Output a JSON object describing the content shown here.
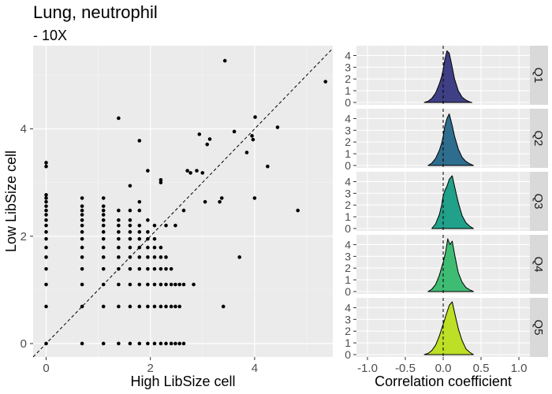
{
  "title": "Lung, neutrophil",
  "subtitle": "- 10X",
  "chart_data": [
    {
      "type": "scatter",
      "xlabel": "High LibSize cell",
      "ylabel": "Low LibSize cell",
      "xlim": [
        -0.25,
        5.5
      ],
      "ylim": [
        -0.25,
        5.55
      ],
      "xticks": [
        0,
        2,
        4
      ],
      "yticks": [
        0,
        2,
        4
      ],
      "reference_line": {
        "style": "dashed",
        "slope": 1,
        "intercept": 0
      },
      "grid": true,
      "points": [
        [
          0,
          0
        ],
        [
          0,
          0.69
        ],
        [
          0,
          1.1
        ],
        [
          0,
          1.39
        ],
        [
          0,
          1.61
        ],
        [
          0,
          1.79
        ],
        [
          0,
          1.95
        ],
        [
          0,
          2.08
        ],
        [
          0,
          2.2
        ],
        [
          0,
          2.3
        ],
        [
          0,
          2.4
        ],
        [
          0,
          2.48
        ],
        [
          0,
          2.56
        ],
        [
          0,
          2.64
        ],
        [
          0,
          2.71
        ],
        [
          0,
          2.77
        ],
        [
          0,
          3.3
        ],
        [
          0,
          3.37
        ],
        [
          0.69,
          0
        ],
        [
          0.69,
          0.69
        ],
        [
          0.69,
          1.1
        ],
        [
          0.69,
          1.39
        ],
        [
          0.69,
          1.61
        ],
        [
          0.69,
          1.79
        ],
        [
          0.69,
          1.95
        ],
        [
          0.69,
          2.08
        ],
        [
          0.69,
          2.2
        ],
        [
          0.69,
          2.3
        ],
        [
          0.69,
          2.4
        ],
        [
          0.69,
          2.48
        ],
        [
          0.69,
          2.56
        ],
        [
          0.69,
          2.71
        ],
        [
          1.1,
          0
        ],
        [
          1.1,
          0.69
        ],
        [
          1.1,
          1.1
        ],
        [
          1.1,
          1.39
        ],
        [
          1.1,
          1.61
        ],
        [
          1.1,
          1.79
        ],
        [
          1.1,
          1.95
        ],
        [
          1.1,
          2.08
        ],
        [
          1.1,
          2.2
        ],
        [
          1.1,
          2.3
        ],
        [
          1.1,
          2.4
        ],
        [
          1.1,
          2.48
        ],
        [
          1.1,
          2.56
        ],
        [
          1.1,
          2.71
        ],
        [
          1.39,
          0
        ],
        [
          1.39,
          0.69
        ],
        [
          1.39,
          1.1
        ],
        [
          1.39,
          1.39
        ],
        [
          1.39,
          1.61
        ],
        [
          1.39,
          1.79
        ],
        [
          1.39,
          1.95
        ],
        [
          1.39,
          2.08
        ],
        [
          1.39,
          2.2
        ],
        [
          1.39,
          2.3
        ],
        [
          1.39,
          2.48
        ],
        [
          1.39,
          4.2
        ],
        [
          1.61,
          0
        ],
        [
          1.61,
          0.69
        ],
        [
          1.61,
          1.1
        ],
        [
          1.61,
          1.39
        ],
        [
          1.61,
          1.61
        ],
        [
          1.61,
          1.79
        ],
        [
          1.61,
          1.95
        ],
        [
          1.61,
          2.08
        ],
        [
          1.61,
          2.2
        ],
        [
          1.61,
          2.3
        ],
        [
          1.61,
          2.48
        ],
        [
          1.61,
          2.94
        ],
        [
          1.79,
          0
        ],
        [
          1.79,
          0.69
        ],
        [
          1.79,
          1.1
        ],
        [
          1.79,
          1.39
        ],
        [
          1.79,
          1.61
        ],
        [
          1.79,
          1.79
        ],
        [
          1.79,
          1.95
        ],
        [
          1.79,
          2.08
        ],
        [
          1.79,
          2.2
        ],
        [
          1.79,
          2.48
        ],
        [
          1.79,
          2.64
        ],
        [
          1.79,
          3.78
        ],
        [
          1.95,
          0
        ],
        [
          1.95,
          0.69
        ],
        [
          1.95,
          1.1
        ],
        [
          1.95,
          1.39
        ],
        [
          1.95,
          1.61
        ],
        [
          1.95,
          1.79
        ],
        [
          1.95,
          1.95
        ],
        [
          1.95,
          2.08
        ],
        [
          1.95,
          2.3
        ],
        [
          1.95,
          3.22
        ],
        [
          2.08,
          0
        ],
        [
          2.08,
          0.69
        ],
        [
          2.08,
          1.1
        ],
        [
          2.08,
          1.39
        ],
        [
          2.08,
          1.61
        ],
        [
          2.08,
          1.79
        ],
        [
          2.08,
          1.95
        ],
        [
          2.08,
          2.2
        ],
        [
          2.2,
          0
        ],
        [
          2.2,
          0.69
        ],
        [
          2.2,
          1.1
        ],
        [
          2.2,
          1.39
        ],
        [
          2.2,
          1.61
        ],
        [
          2.2,
          1.79
        ],
        [
          2.2,
          3.0
        ],
        [
          2.2,
          3.05
        ],
        [
          2.3,
          0
        ],
        [
          2.3,
          0.69
        ],
        [
          2.3,
          1.1
        ],
        [
          2.3,
          1.39
        ],
        [
          2.3,
          1.61
        ],
        [
          2.3,
          2.2
        ],
        [
          2.4,
          0
        ],
        [
          2.4,
          0.69
        ],
        [
          2.4,
          1.1
        ],
        [
          2.4,
          1.39
        ],
        [
          2.48,
          0
        ],
        [
          2.48,
          0.69
        ],
        [
          2.48,
          1.1
        ],
        [
          2.48,
          2.2
        ],
        [
          2.56,
          0
        ],
        [
          2.56,
          0.69
        ],
        [
          2.56,
          1.1
        ],
        [
          2.64,
          0
        ],
        [
          2.64,
          1.1
        ],
        [
          2.64,
          2.48
        ],
        [
          2.71,
          3.22
        ],
        [
          2.77,
          3.18
        ],
        [
          2.83,
          1.1
        ],
        [
          2.89,
          3.22
        ],
        [
          2.94,
          3.9
        ],
        [
          3.0,
          3.18
        ],
        [
          3.05,
          2.64
        ],
        [
          3.09,
          3.71
        ],
        [
          3.14,
          3.81
        ],
        [
          3.33,
          2.64
        ],
        [
          3.37,
          2.71
        ],
        [
          3.4,
          0.69
        ],
        [
          3.43,
          5.27
        ],
        [
          3.61,
          3.95
        ],
        [
          3.71,
          1.61
        ],
        [
          3.85,
          3.56
        ],
        [
          3.95,
          3.87
        ],
        [
          3.97,
          3.8
        ],
        [
          4.0,
          2.71
        ],
        [
          4.01,
          4.22
        ],
        [
          4.25,
          3.3
        ],
        [
          4.44,
          4.03
        ],
        [
          4.83,
          2.48
        ],
        [
          5.36,
          4.88
        ]
      ]
    },
    {
      "type": "area",
      "xlabel": "Correlation coefficient",
      "xlim": [
        -1.0,
        1.0
      ],
      "xticks": [
        -1.0,
        -0.5,
        0.0,
        0.5,
        1.0
      ],
      "xticklabels": [
        "-1.0",
        "-0.5",
        "0.0",
        "0.5",
        "1.0"
      ],
      "ylim": [
        0,
        4.5
      ],
      "yticks": [
        0,
        1,
        2,
        3,
        4
      ],
      "reference_line": {
        "style": "dashed",
        "x": 0
      },
      "facets": [
        {
          "name": "Q1",
          "color": "#3f3f85",
          "x": [
            -0.25,
            -0.2,
            -0.15,
            -0.1,
            -0.05,
            -0.02,
            0.0,
            0.02,
            0.05,
            0.08,
            0.12,
            0.15,
            0.2,
            0.25,
            0.3,
            0.35,
            0.38
          ],
          "y": [
            0,
            0.1,
            0.35,
            0.8,
            1.6,
            2.2,
            2.8,
            3.6,
            4.4,
            4.2,
            3.0,
            2.0,
            1.0,
            0.45,
            0.2,
            0.05,
            0
          ]
        },
        {
          "name": "Q2",
          "color": "#2e6d8e",
          "x": [
            -0.2,
            -0.15,
            -0.1,
            -0.05,
            -0.02,
            0.0,
            0.02,
            0.05,
            0.08,
            0.12,
            0.15,
            0.2,
            0.25,
            0.3,
            0.35,
            0.4
          ],
          "y": [
            0,
            0.2,
            0.6,
            1.3,
            1.9,
            2.5,
            3.3,
            4.0,
            4.4,
            3.4,
            2.5,
            1.4,
            0.7,
            0.35,
            0.15,
            0
          ]
        },
        {
          "name": "Q3",
          "color": "#21a08a",
          "x": [
            -0.15,
            -0.1,
            -0.05,
            -0.02,
            0.0,
            0.02,
            0.05,
            0.08,
            0.12,
            0.15,
            0.2,
            0.25,
            0.3,
            0.35,
            0.4
          ],
          "y": [
            0,
            0.4,
            1.2,
            2.0,
            2.8,
            3.2,
            3.6,
            4.2,
            4.5,
            3.6,
            2.2,
            1.1,
            0.5,
            0.2,
            0
          ]
        },
        {
          "name": "Q4",
          "color": "#3fbc73",
          "x": [
            -0.2,
            -0.15,
            -0.1,
            -0.05,
            0.0,
            0.03,
            0.06,
            0.09,
            0.12,
            0.15,
            0.2,
            0.25,
            0.3,
            0.35,
            0.4
          ],
          "y": [
            0,
            0.2,
            0.6,
            1.4,
            2.5,
            3.3,
            4.5,
            4.0,
            4.3,
            3.2,
            1.6,
            0.8,
            0.35,
            0.15,
            0
          ]
        },
        {
          "name": "Q5",
          "color": "#bddf26",
          "x": [
            -0.25,
            -0.2,
            -0.15,
            -0.1,
            -0.05,
            0.0,
            0.05,
            0.08,
            0.12,
            0.15,
            0.2,
            0.25,
            0.3,
            0.35,
            0.4
          ],
          "y": [
            0,
            0.1,
            0.35,
            0.8,
            1.6,
            2.6,
            3.6,
            4.2,
            4.5,
            3.6,
            2.2,
            1.2,
            0.5,
            0.2,
            0
          ]
        }
      ]
    }
  ]
}
